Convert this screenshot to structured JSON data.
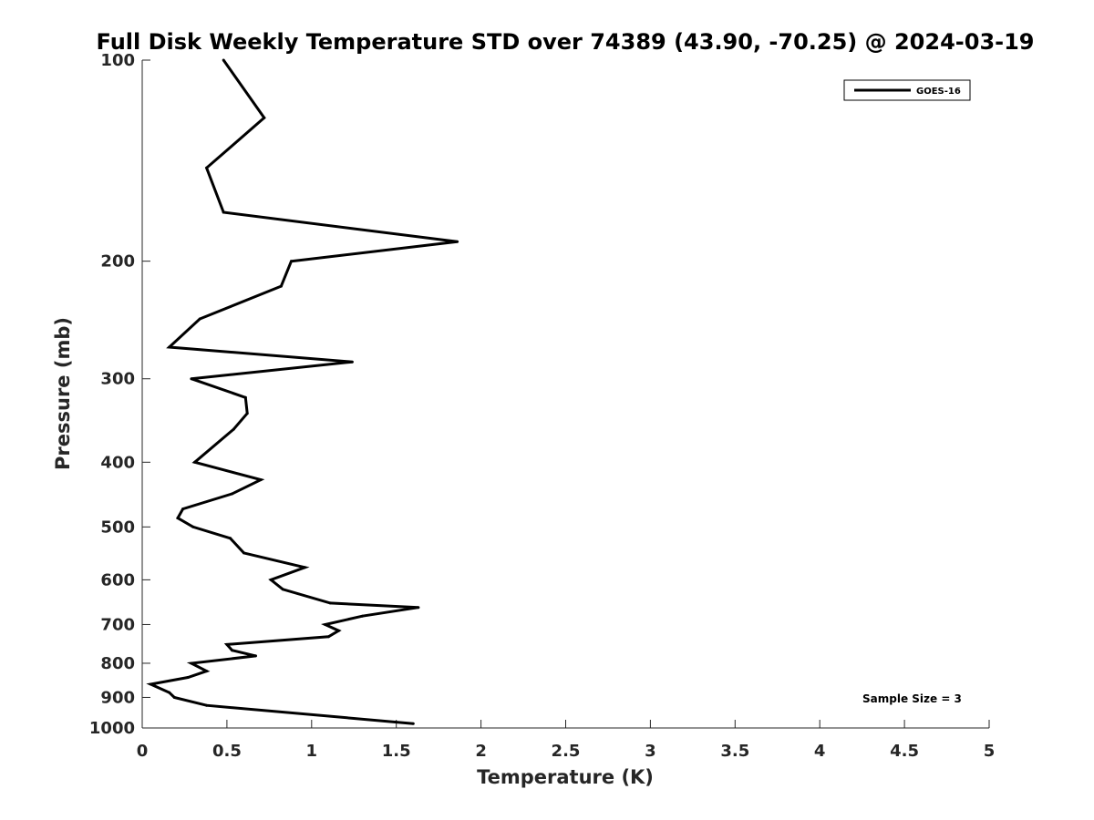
{
  "chart_data": {
    "type": "line",
    "title": "Full Disk Weekly Temperature STD over 74389 (43.90, -70.25) @ 2024-03-19",
    "xlabel": "Temperature (K)",
    "ylabel": "Pressure (mb)",
    "xlim": [
      0,
      5
    ],
    "ylim": [
      100,
      1000
    ],
    "y_scale": "log",
    "y_direction": "reversed",
    "x_ticks": [
      "0",
      "0.5",
      "1",
      "1.5",
      "2",
      "2.5",
      "3",
      "3.5",
      "4",
      "4.5",
      "5"
    ],
    "y_ticks": [
      "100",
      "200",
      "300",
      "400",
      "500",
      "600",
      "700",
      "800",
      "900",
      "1000"
    ],
    "grid": false,
    "legend_position": "top-right",
    "series": [
      {
        "name": "GOES-16",
        "color": "#000000",
        "points": [
          [
            0.48,
            100
          ],
          [
            0.72,
            122
          ],
          [
            0.38,
            145
          ],
          [
            0.48,
            169
          ],
          [
            1.86,
            187
          ],
          [
            0.88,
            200
          ],
          [
            0.82,
            218
          ],
          [
            0.34,
            244
          ],
          [
            0.16,
            269
          ],
          [
            1.24,
            283
          ],
          [
            0.29,
            300
          ],
          [
            0.61,
            320
          ],
          [
            0.62,
            338
          ],
          [
            0.54,
            357
          ],
          [
            0.31,
            400
          ],
          [
            0.7,
            425
          ],
          [
            0.53,
            446
          ],
          [
            0.24,
            470
          ],
          [
            0.21,
            485
          ],
          [
            0.3,
            500
          ],
          [
            0.52,
            520
          ],
          [
            0.6,
            547
          ],
          [
            0.96,
            575
          ],
          [
            0.76,
            600
          ],
          [
            0.83,
            620
          ],
          [
            1.11,
            650
          ],
          [
            1.63,
            660
          ],
          [
            1.3,
            680
          ],
          [
            1.08,
            700
          ],
          [
            1.16,
            715
          ],
          [
            1.1,
            730
          ],
          [
            0.5,
            750
          ],
          [
            0.53,
            765
          ],
          [
            0.67,
            780
          ],
          [
            0.29,
            800
          ],
          [
            0.38,
            822
          ],
          [
            0.27,
            840
          ],
          [
            0.05,
            860
          ],
          [
            0.16,
            885
          ],
          [
            0.19,
            900
          ],
          [
            0.38,
            925
          ],
          [
            1.6,
            985
          ]
        ]
      }
    ],
    "annotations": [
      "Sample Size = 3"
    ]
  }
}
